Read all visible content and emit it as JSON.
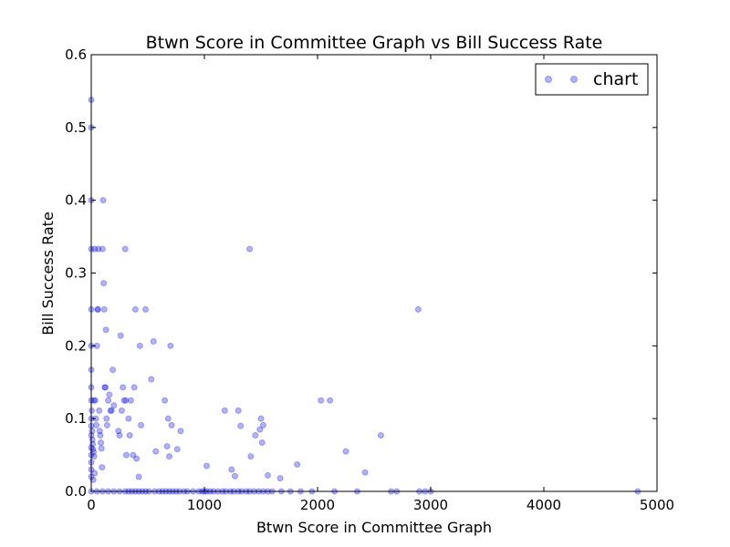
{
  "chart_data": {
    "type": "scatter",
    "title": "Btwn Score in Committee Graph vs Bill Success Rate",
    "xlabel": "Btwn Score in Committee Graph",
    "ylabel": "Bill Success Rate",
    "xlim": [
      0,
      5000
    ],
    "ylim": [
      0,
      0.6
    ],
    "xticks": [
      0,
      1000,
      2000,
      3000,
      4000,
      5000
    ],
    "yticks": [
      0.0,
      0.1,
      0.2,
      0.3,
      0.4,
      0.5,
      0.6
    ],
    "xtick_labels": [
      "0",
      "1000",
      "2000",
      "3000",
      "4000",
      "5000"
    ],
    "ytick_labels": [
      "0.0",
      "0.1",
      "0.2",
      "0.3",
      "0.4",
      "0.5",
      "0.6"
    ],
    "grid": false,
    "legend_position": "top-right",
    "series": [
      {
        "name": "chart",
        "color": "#0000ff",
        "alpha": 0.3,
        "points": [
          [
            0,
            0.538
          ],
          [
            0,
            0.5
          ],
          [
            0,
            0.4
          ],
          [
            0,
            0.333
          ],
          [
            0,
            0.25
          ],
          [
            0,
            0.2
          ],
          [
            0,
            0.167
          ],
          [
            0,
            0.143
          ],
          [
            0,
            0.125
          ],
          [
            0,
            0.1
          ],
          [
            0,
            0.09
          ],
          [
            0,
            0.077
          ],
          [
            0,
            0.06
          ],
          [
            0,
            0.05
          ],
          [
            0,
            0.04
          ],
          [
            0,
            0.03
          ],
          [
            0,
            0.02
          ],
          [
            0,
            0.0
          ],
          [
            5,
            0.111
          ],
          [
            8,
            0.083
          ],
          [
            10,
            0.071
          ],
          [
            12,
            0.065
          ],
          [
            15,
            0.058
          ],
          [
            20,
            0.054
          ],
          [
            25,
            0.048
          ],
          [
            30,
            0.025
          ],
          [
            18,
            0.016
          ],
          [
            22,
            0.125
          ],
          [
            30,
            0.333
          ],
          [
            35,
            0.125
          ],
          [
            40,
            0.1
          ],
          [
            45,
            0.091
          ],
          [
            50,
            0.2
          ],
          [
            55,
            0.25
          ],
          [
            60,
            0.25
          ],
          [
            62,
            0.333
          ],
          [
            70,
            0.111
          ],
          [
            75,
            0.083
          ],
          [
            80,
            0.077
          ],
          [
            85,
            0.067
          ],
          [
            90,
            0.059
          ],
          [
            95,
            0.033
          ],
          [
            100,
            0.333
          ],
          [
            105,
            0.4
          ],
          [
            110,
            0.286
          ],
          [
            115,
            0.25
          ],
          [
            120,
            0.143
          ],
          [
            125,
            0.143
          ],
          [
            130,
            0.222
          ],
          [
            135,
            0.1
          ],
          [
            140,
            0.091
          ],
          [
            150,
            0.125
          ],
          [
            160,
            0.133
          ],
          [
            170,
            0.111
          ],
          [
            180,
            0.111
          ],
          [
            190,
            0.167
          ],
          [
            200,
            0.118
          ],
          [
            240,
            0.083
          ],
          [
            250,
            0.077
          ],
          [
            260,
            0.214
          ],
          [
            270,
            0.111
          ],
          [
            280,
            0.143
          ],
          [
            290,
            0.125
          ],
          [
            300,
            0.333
          ],
          [
            305,
            0.125
          ],
          [
            310,
            0.05
          ],
          [
            330,
            0.1
          ],
          [
            340,
            0.077
          ],
          [
            350,
            0.125
          ],
          [
            370,
            0.05
          ],
          [
            380,
            0.143
          ],
          [
            390,
            0.25
          ],
          [
            400,
            0.045
          ],
          [
            420,
            0.02
          ],
          [
            430,
            0.2
          ],
          [
            440,
            0.091
          ],
          [
            480,
            0.25
          ],
          [
            530,
            0.154
          ],
          [
            550,
            0.206
          ],
          [
            570,
            0.055
          ],
          [
            650,
            0.125
          ],
          [
            670,
            0.062
          ],
          [
            680,
            0.1
          ],
          [
            690,
            0.048
          ],
          [
            700,
            0.2
          ],
          [
            710,
            0.091
          ],
          [
            760,
            0.058
          ],
          [
            790,
            0.083
          ],
          [
            1020,
            0.035
          ],
          [
            1180,
            0.111
          ],
          [
            1240,
            0.03
          ],
          [
            1270,
            0.021
          ],
          [
            1300,
            0.111
          ],
          [
            1320,
            0.09
          ],
          [
            1400,
            0.333
          ],
          [
            1410,
            0.048
          ],
          [
            1450,
            0.077
          ],
          [
            1490,
            0.085
          ],
          [
            1500,
            0.1
          ],
          [
            1510,
            0.067
          ],
          [
            1520,
            0.091
          ],
          [
            1560,
            0.022
          ],
          [
            1670,
            0.018
          ],
          [
            1820,
            0.037
          ],
          [
            2030,
            0.125
          ],
          [
            2110,
            0.125
          ],
          [
            2250,
            0.055
          ],
          [
            2420,
            0.026
          ],
          [
            2560,
            0.077
          ],
          [
            2890,
            0.25
          ],
          [
            50,
            0.0
          ],
          [
            100,
            0.0
          ],
          [
            150,
            0.0
          ],
          [
            200,
            0.0
          ],
          [
            250,
            0.0
          ],
          [
            300,
            0.0
          ],
          [
            330,
            0.0
          ],
          [
            360,
            0.0
          ],
          [
            390,
            0.0
          ],
          [
            420,
            0.0
          ],
          [
            450,
            0.0
          ],
          [
            480,
            0.0
          ],
          [
            510,
            0.0
          ],
          [
            560,
            0.0
          ],
          [
            600,
            0.0
          ],
          [
            630,
            0.0
          ],
          [
            660,
            0.0
          ],
          [
            690,
            0.0
          ],
          [
            720,
            0.0
          ],
          [
            750,
            0.0
          ],
          [
            780,
            0.0
          ],
          [
            820,
            0.0
          ],
          [
            850,
            0.0
          ],
          [
            900,
            0.0
          ],
          [
            950,
            0.0
          ],
          [
            980,
            0.0
          ],
          [
            1000,
            0.0
          ],
          [
            1020,
            0.0
          ],
          [
            1050,
            0.0
          ],
          [
            1080,
            0.0
          ],
          [
            1120,
            0.0
          ],
          [
            1160,
            0.0
          ],
          [
            1190,
            0.0
          ],
          [
            1230,
            0.0
          ],
          [
            1260,
            0.0
          ],
          [
            1300,
            0.0
          ],
          [
            1330,
            0.0
          ],
          [
            1370,
            0.0
          ],
          [
            1400,
            0.0
          ],
          [
            1440,
            0.0
          ],
          [
            1480,
            0.0
          ],
          [
            1520,
            0.0
          ],
          [
            1560,
            0.0
          ],
          [
            1600,
            0.0
          ],
          [
            1680,
            0.0
          ],
          [
            1760,
            0.0
          ],
          [
            1850,
            0.0
          ],
          [
            1950,
            0.0
          ],
          [
            2150,
            0.0
          ],
          [
            2350,
            0.0
          ],
          [
            2650,
            0.0
          ],
          [
            2700,
            0.0
          ],
          [
            2900,
            0.0
          ],
          [
            2950,
            0.0
          ],
          [
            3000,
            0.0
          ],
          [
            4830,
            0.0
          ]
        ]
      }
    ]
  }
}
